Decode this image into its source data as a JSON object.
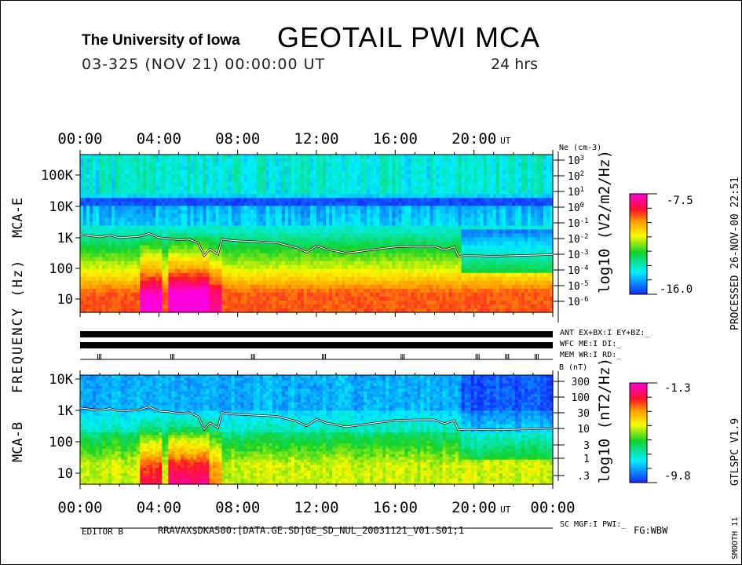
{
  "header": {
    "institution": "The University of Iowa",
    "title": "GEOTAIL PWI MCA",
    "date_line": "03-325 (NOV 21) 00:00:00 UT",
    "duration": "24 hrs"
  },
  "chart_data": [
    {
      "type": "heatmap",
      "panel": "MCA-E",
      "ylabel": "FREQUENCY (Hz)",
      "panel_label": "MCA-E",
      "yticks": [
        "100K",
        "10K",
        "1K",
        "100",
        "10"
      ],
      "xticks": [
        "00:00",
        "04:00",
        "08:00",
        "12:00",
        "16:00",
        "20:00"
      ],
      "xunit": "UT",
      "right_axis": {
        "label": "Ne (cm-3)",
        "ticks": [
          "10^3",
          "10^2",
          "10^1",
          "10^0",
          "10^-1",
          "10^-2",
          "10^-3",
          "10^-4",
          "10^-5",
          "10^-6"
        ]
      },
      "colorbar": {
        "label": "log10 (V2/m2/Hz)",
        "max": "-7.5",
        "min": "-16.0",
        "range": [
          -16.0,
          -7.5
        ]
      },
      "line": {
        "color": "#ffffff",
        "x_hours": [
          0,
          0.5,
          1,
          1.5,
          2,
          2.5,
          3,
          3.5,
          4,
          4.5,
          5,
          5.5,
          6,
          6.3,
          6.6,
          7,
          7.2,
          7.5,
          8,
          9,
          10,
          11,
          11.5,
          12,
          12.5,
          13,
          13.5,
          14,
          15,
          16,
          17,
          18,
          18.5,
          19,
          19.2,
          19.5,
          20,
          21,
          22,
          23,
          24
        ],
        "freq_hz": [
          1200,
          1100,
          1000,
          1150,
          950,
          1000,
          1050,
          1300,
          950,
          900,
          800,
          850,
          650,
          250,
          400,
          280,
          850,
          800,
          750,
          700,
          650,
          450,
          320,
          520,
          400,
          350,
          300,
          330,
          400,
          480,
          500,
          500,
          380,
          480,
          240,
          250,
          250,
          240,
          250,
          260,
          270
        ]
      }
    },
    {
      "type": "heatmap",
      "panel": "MCA-B",
      "panel_label": "MCA-B",
      "yticks": [
        "10K",
        "1K",
        "100",
        "10"
      ],
      "xticks": [
        "00:00",
        "04:00",
        "08:00",
        "12:00",
        "16:00",
        "20:00",
        "00:00"
      ],
      "xunit": "UT",
      "right_axis": {
        "label": "B (nT)",
        "ticks": [
          "300",
          "100",
          "30",
          "10",
          "3",
          "1",
          ".3"
        ]
      },
      "colorbar": {
        "label": "log10 (nT2/Hz)",
        "max": "-1.3",
        "min": "-9.8",
        "range": [
          -9.8,
          -1.3
        ]
      }
    }
  ],
  "status": {
    "ant": "ANT EX+BX:I EY+BZ:_",
    "wfc": "WFC ME:I    DI:_",
    "mem": "MEM WR:I    RD:_",
    "sc": "SC MGF:I    PWI:_"
  },
  "side": {
    "processed": "PROCESSED 26-NOV-00   22:51",
    "version": "GTLSPC   V1.9",
    "smooth": "SMOOTH 11"
  },
  "footer": {
    "editor": "EDITOR B",
    "path": "RRAVAX$DKA500:[DATA.GE.SD]GE_SD_NUL_20031121_V01.S01;1",
    "fg": "FG:WBW"
  }
}
